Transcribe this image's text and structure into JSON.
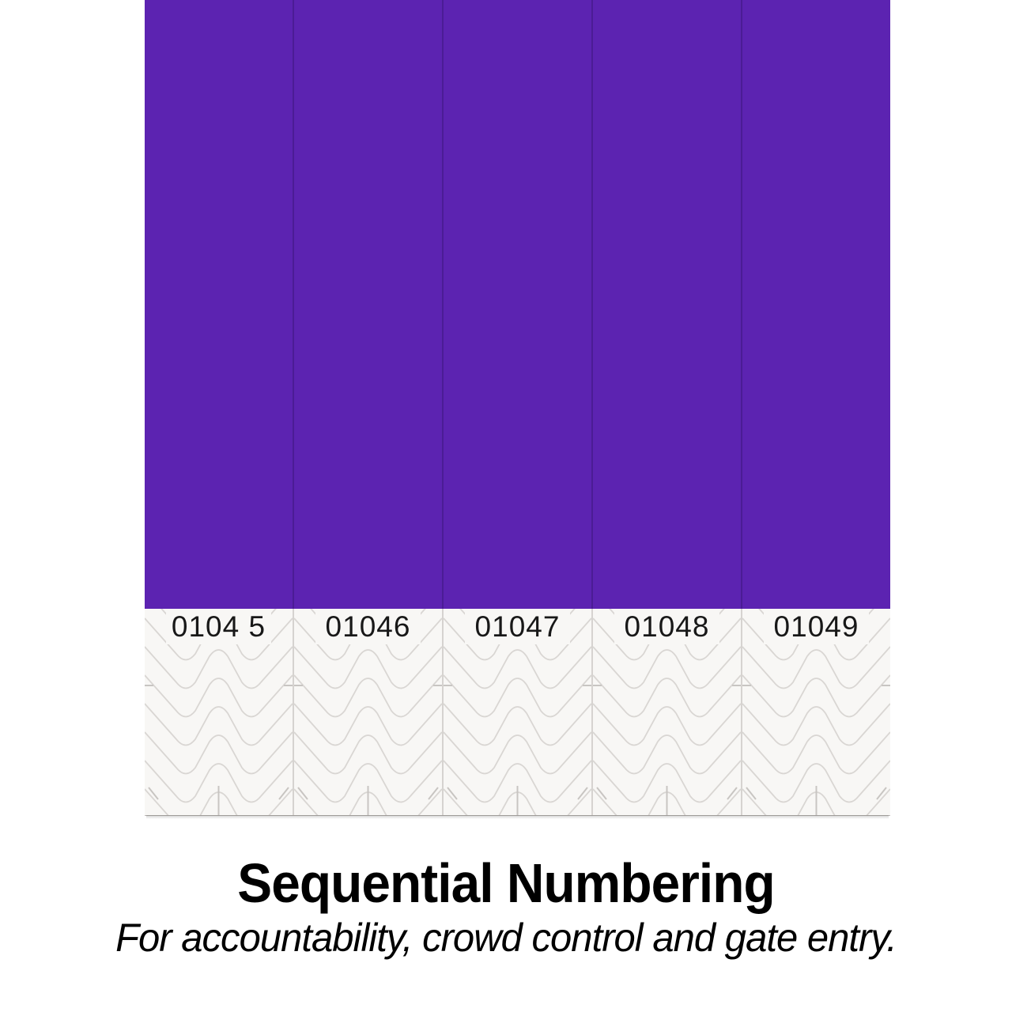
{
  "sheet": {
    "wristband_color": "#5c23b1",
    "strip_divider_color": "#4b1c95",
    "stub_background": "#f8f7f5",
    "wave_line_color": "#d9d6d3",
    "tick_mark_color": "#c8c5c2",
    "stub_numbers": [
      "0104 5",
      "01046",
      "01047",
      "01048",
      "01049"
    ]
  },
  "caption": {
    "title": "Sequential Numbering",
    "subtitle": "For accountability, crowd control and gate entry."
  }
}
